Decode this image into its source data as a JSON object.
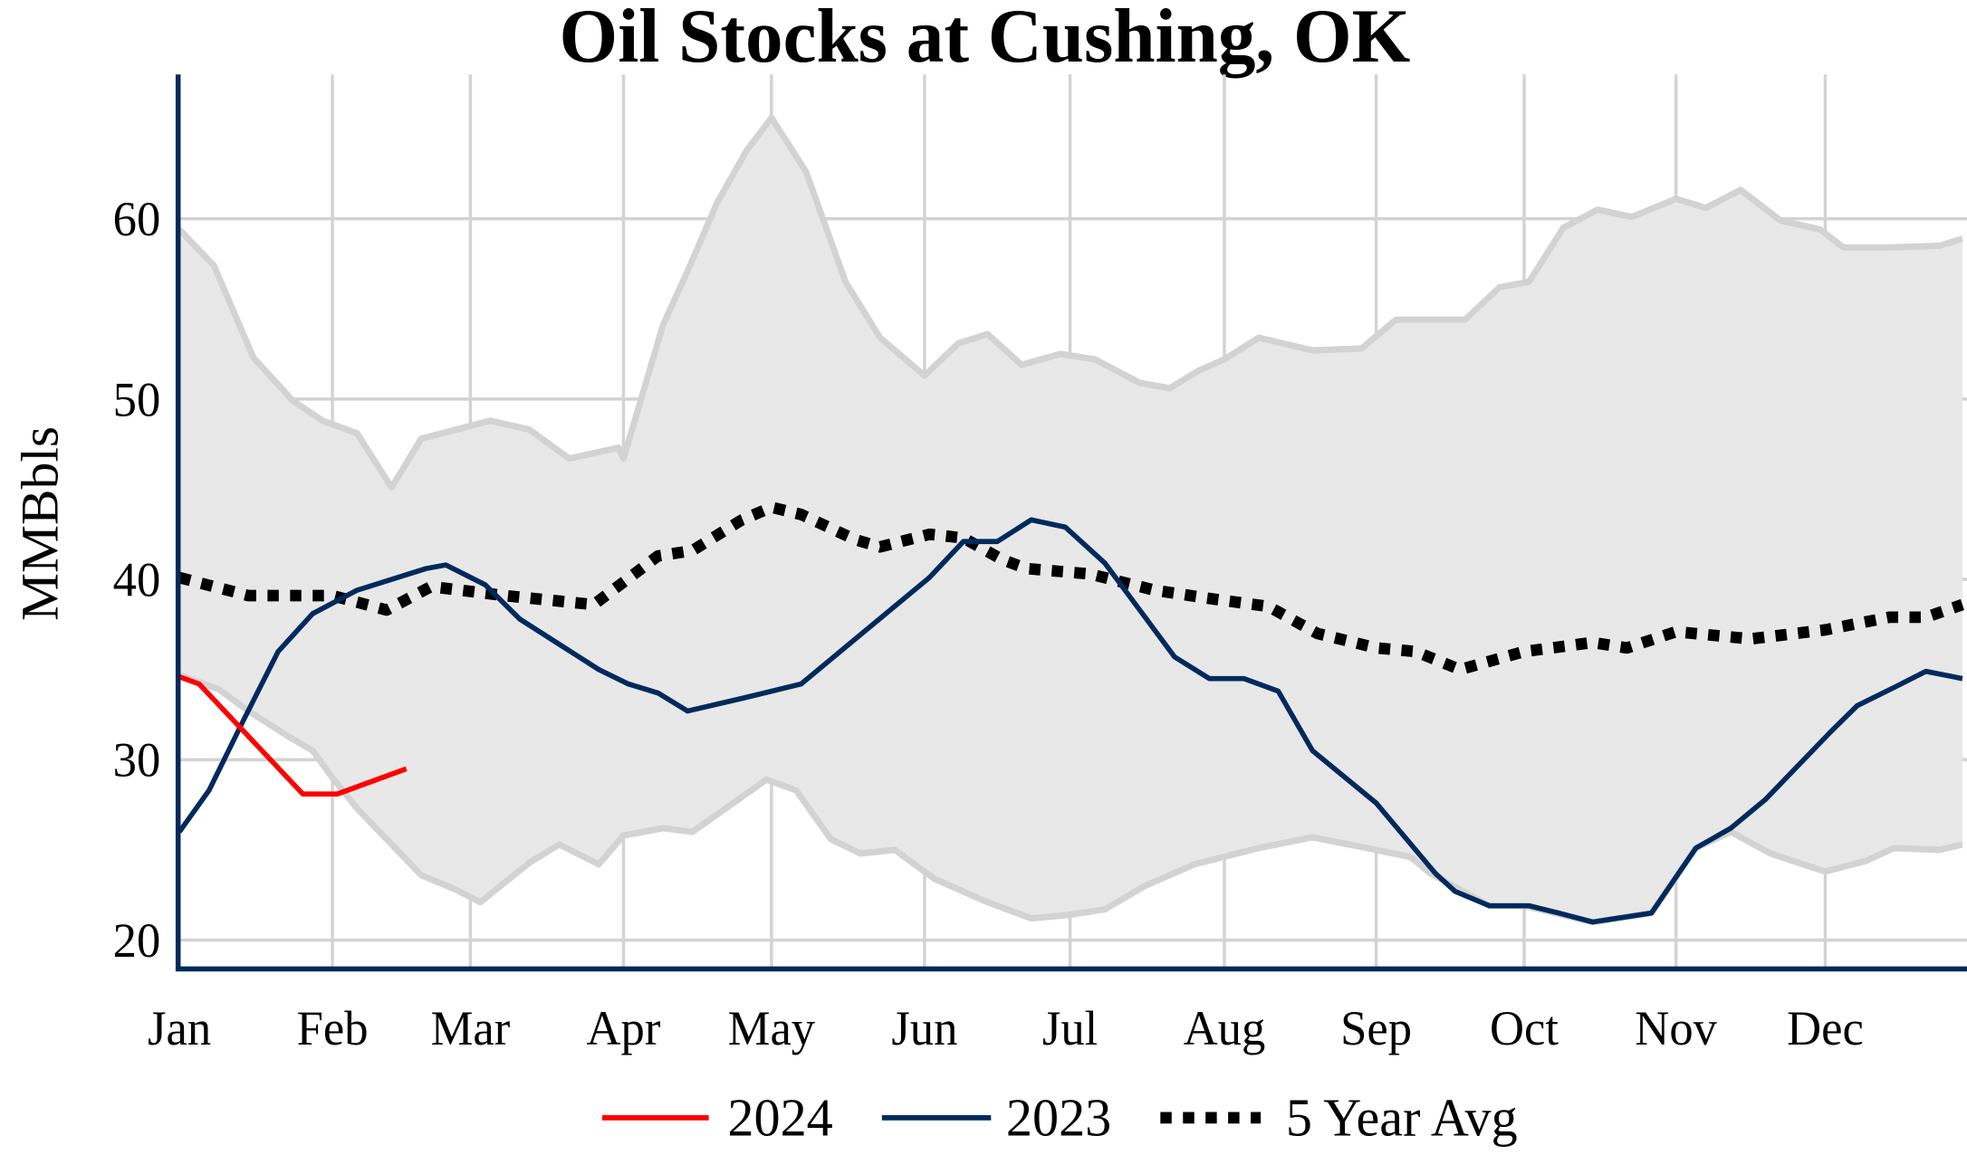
{
  "chart_data": {
    "type": "line",
    "title": "Oil Stocks at Cushing, OK",
    "xlabel": "",
    "ylabel": "MMBbls",
    "ylim": [
      18.4,
      68
    ],
    "x_ticks": [
      "Jan",
      "Feb",
      "Mar",
      "Apr",
      "May",
      "Jun",
      "Jul",
      "Aug",
      "Sep",
      "Oct",
      "Nov",
      "Dec"
    ],
    "y_ticks": [
      20,
      30,
      40,
      50,
      60
    ],
    "grid": true,
    "legend_position": "bottom",
    "band": {
      "color": "#e8e8e8",
      "edge_color": "#d3d3d3",
      "upper": [
        [
          "01-01",
          59.4
        ],
        [
          "01-08",
          57.4
        ],
        [
          "01-16",
          52.3
        ],
        [
          "01-24",
          49.9
        ],
        [
          "01-30",
          48.8
        ],
        [
          "02-06",
          48.1
        ],
        [
          "02-13",
          45.1
        ],
        [
          "02-19",
          47.8
        ],
        [
          "03-05",
          48.8
        ],
        [
          "03-13",
          48.3
        ],
        [
          "03-21",
          46.7
        ],
        [
          "03-31",
          47.3
        ],
        [
          "04-01",
          46.7
        ],
        [
          "04-09",
          54.1
        ],
        [
          "04-14",
          57.1
        ],
        [
          "04-20",
          60.9
        ],
        [
          "04-26",
          63.8
        ],
        [
          "05-01",
          65.6
        ],
        [
          "05-08",
          62.6
        ],
        [
          "05-16",
          56.5
        ],
        [
          "05-23",
          53.4
        ],
        [
          "06-01",
          51.3
        ],
        [
          "06-08",
          53.1
        ],
        [
          "06-14",
          53.6
        ],
        [
          "06-21",
          51.9
        ],
        [
          "06-29",
          52.5
        ],
        [
          "07-06",
          52.2
        ],
        [
          "07-15",
          50.9
        ],
        [
          "07-21",
          50.6
        ],
        [
          "07-27",
          51.6
        ],
        [
          "08-01",
          52.2
        ],
        [
          "08-08",
          53.4
        ],
        [
          "08-19",
          52.7
        ],
        [
          "08-29",
          52.8
        ],
        [
          "09-05",
          54.4
        ],
        [
          "09-19",
          54.4
        ],
        [
          "09-26",
          56.2
        ],
        [
          "10-02",
          56.5
        ],
        [
          "10-09",
          59.5
        ],
        [
          "10-16",
          60.5
        ],
        [
          "10-23",
          60.1
        ],
        [
          "11-01",
          61.1
        ],
        [
          "11-07",
          60.6
        ],
        [
          "11-14",
          61.6
        ],
        [
          "11-22",
          59.9
        ],
        [
          "11-30",
          59.4
        ],
        [
          "12-05",
          58.4
        ],
        [
          "12-14",
          58.4
        ],
        [
          "12-26",
          58.5
        ],
        [
          "12-31",
          58.9
        ]
      ],
      "lower": [
        [
          "01-01",
          34.7
        ],
        [
          "01-09",
          33.9
        ],
        [
          "01-15",
          32.7
        ],
        [
          "01-23",
          31.3
        ],
        [
          "01-28",
          30.5
        ],
        [
          "02-01",
          29.0
        ],
        [
          "02-06",
          27.3
        ],
        [
          "02-19",
          23.6
        ],
        [
          "02-26",
          22.8
        ],
        [
          "03-03",
          22.1
        ],
        [
          "03-13",
          24.3
        ],
        [
          "03-19",
          25.3
        ],
        [
          "03-27",
          24.2
        ],
        [
          "04-01",
          25.8
        ],
        [
          "04-09",
          26.2
        ],
        [
          "04-15",
          26.0
        ],
        [
          "04-30",
          28.9
        ],
        [
          "05-06",
          28.3
        ],
        [
          "05-13",
          25.6
        ],
        [
          "05-19",
          24.8
        ],
        [
          "05-26",
          25.0
        ],
        [
          "06-03",
          23.4
        ],
        [
          "06-14",
          22.1
        ],
        [
          "06-23",
          21.2
        ],
        [
          "07-01",
          21.4
        ],
        [
          "07-08",
          21.7
        ],
        [
          "07-16",
          23.0
        ],
        [
          "07-26",
          24.2
        ],
        [
          "08-08",
          25.1
        ],
        [
          "08-19",
          25.7
        ],
        [
          "09-01",
          25.0
        ],
        [
          "09-08",
          24.6
        ],
        [
          "09-12",
          23.7
        ],
        [
          "09-24",
          21.9
        ],
        [
          "10-01",
          21.9
        ],
        [
          "10-15",
          21.0
        ],
        [
          "10-27",
          21.5
        ],
        [
          "11-05",
          25.1
        ],
        [
          "11-12",
          26.0
        ],
        [
          "11-20",
          24.8
        ],
        [
          "12-01",
          23.8
        ],
        [
          "12-10",
          24.4
        ],
        [
          "12-16",
          25.1
        ],
        [
          "12-26",
          25.0
        ],
        [
          "12-31",
          25.3
        ]
      ]
    },
    "series": [
      {
        "name": "2024",
        "color": "#ff0000",
        "style": "solid",
        "points": [
          [
            "01-01",
            34.6
          ],
          [
            "01-05",
            34.2
          ],
          [
            "01-26",
            28.1
          ],
          [
            "02-02",
            28.1
          ],
          [
            "02-16",
            29.5
          ]
        ]
      },
      {
        "name": "2023",
        "color": "#002a5c",
        "style": "solid",
        "points": [
          [
            "01-01",
            26.0
          ],
          [
            "01-07",
            28.3
          ],
          [
            "01-14",
            32.2
          ],
          [
            "01-21",
            36.0
          ],
          [
            "01-28",
            38.1
          ],
          [
            "02-06",
            39.4
          ],
          [
            "02-20",
            40.6
          ],
          [
            "02-24",
            40.8
          ],
          [
            "03-04",
            39.7
          ],
          [
            "03-11",
            37.8
          ],
          [
            "03-19",
            36.4
          ],
          [
            "03-27",
            35.0
          ],
          [
            "04-02",
            34.2
          ],
          [
            "04-08",
            33.7
          ],
          [
            "04-14",
            32.7
          ],
          [
            "04-25",
            33.4
          ],
          [
            "05-07",
            34.2
          ],
          [
            "05-18",
            36.7
          ],
          [
            "06-02",
            40.1
          ],
          [
            "06-09",
            42.1
          ],
          [
            "06-16",
            42.1
          ],
          [
            "06-23",
            43.3
          ],
          [
            "06-30",
            42.9
          ],
          [
            "07-08",
            40.9
          ],
          [
            "07-15",
            38.3
          ],
          [
            "07-22",
            35.7
          ],
          [
            "07-29",
            34.5
          ],
          [
            "08-05",
            34.5
          ],
          [
            "08-12",
            33.8
          ],
          [
            "08-19",
            30.5
          ],
          [
            "09-01",
            27.6
          ],
          [
            "09-13",
            23.7
          ],
          [
            "09-17",
            22.7
          ],
          [
            "09-24",
            21.9
          ],
          [
            "10-02",
            21.9
          ],
          [
            "10-08",
            21.5
          ],
          [
            "10-15",
            21.0
          ],
          [
            "10-27",
            21.5
          ],
          [
            "11-05",
            25.1
          ],
          [
            "11-12",
            26.2
          ],
          [
            "11-19",
            27.8
          ],
          [
            "12-02",
            31.5
          ],
          [
            "12-08",
            33.0
          ],
          [
            "12-16",
            34.0
          ],
          [
            "12-23",
            34.9
          ],
          [
            "12-31",
            34.5
          ]
        ]
      },
      {
        "name": "5 Year Avg",
        "color": "#000000",
        "style": "dotted",
        "points": [
          [
            "01-01",
            40.1
          ],
          [
            "01-15",
            39.1
          ],
          [
            "02-01",
            39.1
          ],
          [
            "02-12",
            38.3
          ],
          [
            "02-21",
            39.6
          ],
          [
            "03-08",
            39.1
          ],
          [
            "03-26",
            38.6
          ],
          [
            "04-08",
            41.3
          ],
          [
            "04-15",
            41.6
          ],
          [
            "04-25",
            43.3
          ],
          [
            "05-01",
            44.0
          ],
          [
            "05-07",
            43.6
          ],
          [
            "05-18",
            42.2
          ],
          [
            "05-23",
            41.8
          ],
          [
            "06-02",
            42.5
          ],
          [
            "06-09",
            42.3
          ],
          [
            "06-17",
            41.1
          ],
          [
            "06-22",
            40.6
          ],
          [
            "07-05",
            40.3
          ],
          [
            "07-18",
            39.4
          ],
          [
            "07-30",
            38.9
          ],
          [
            "08-10",
            38.5
          ],
          [
            "08-20",
            37.0
          ],
          [
            "09-01",
            36.2
          ],
          [
            "09-09",
            36.0
          ],
          [
            "09-18",
            35.0
          ],
          [
            "10-01",
            36.0
          ],
          [
            "10-15",
            36.5
          ],
          [
            "10-22",
            36.2
          ],
          [
            "11-01",
            37.1
          ],
          [
            "11-16",
            36.7
          ],
          [
            "12-01",
            37.2
          ],
          [
            "12-15",
            37.9
          ],
          [
            "12-23",
            37.9
          ],
          [
            "12-31",
            38.6
          ]
        ]
      }
    ]
  }
}
